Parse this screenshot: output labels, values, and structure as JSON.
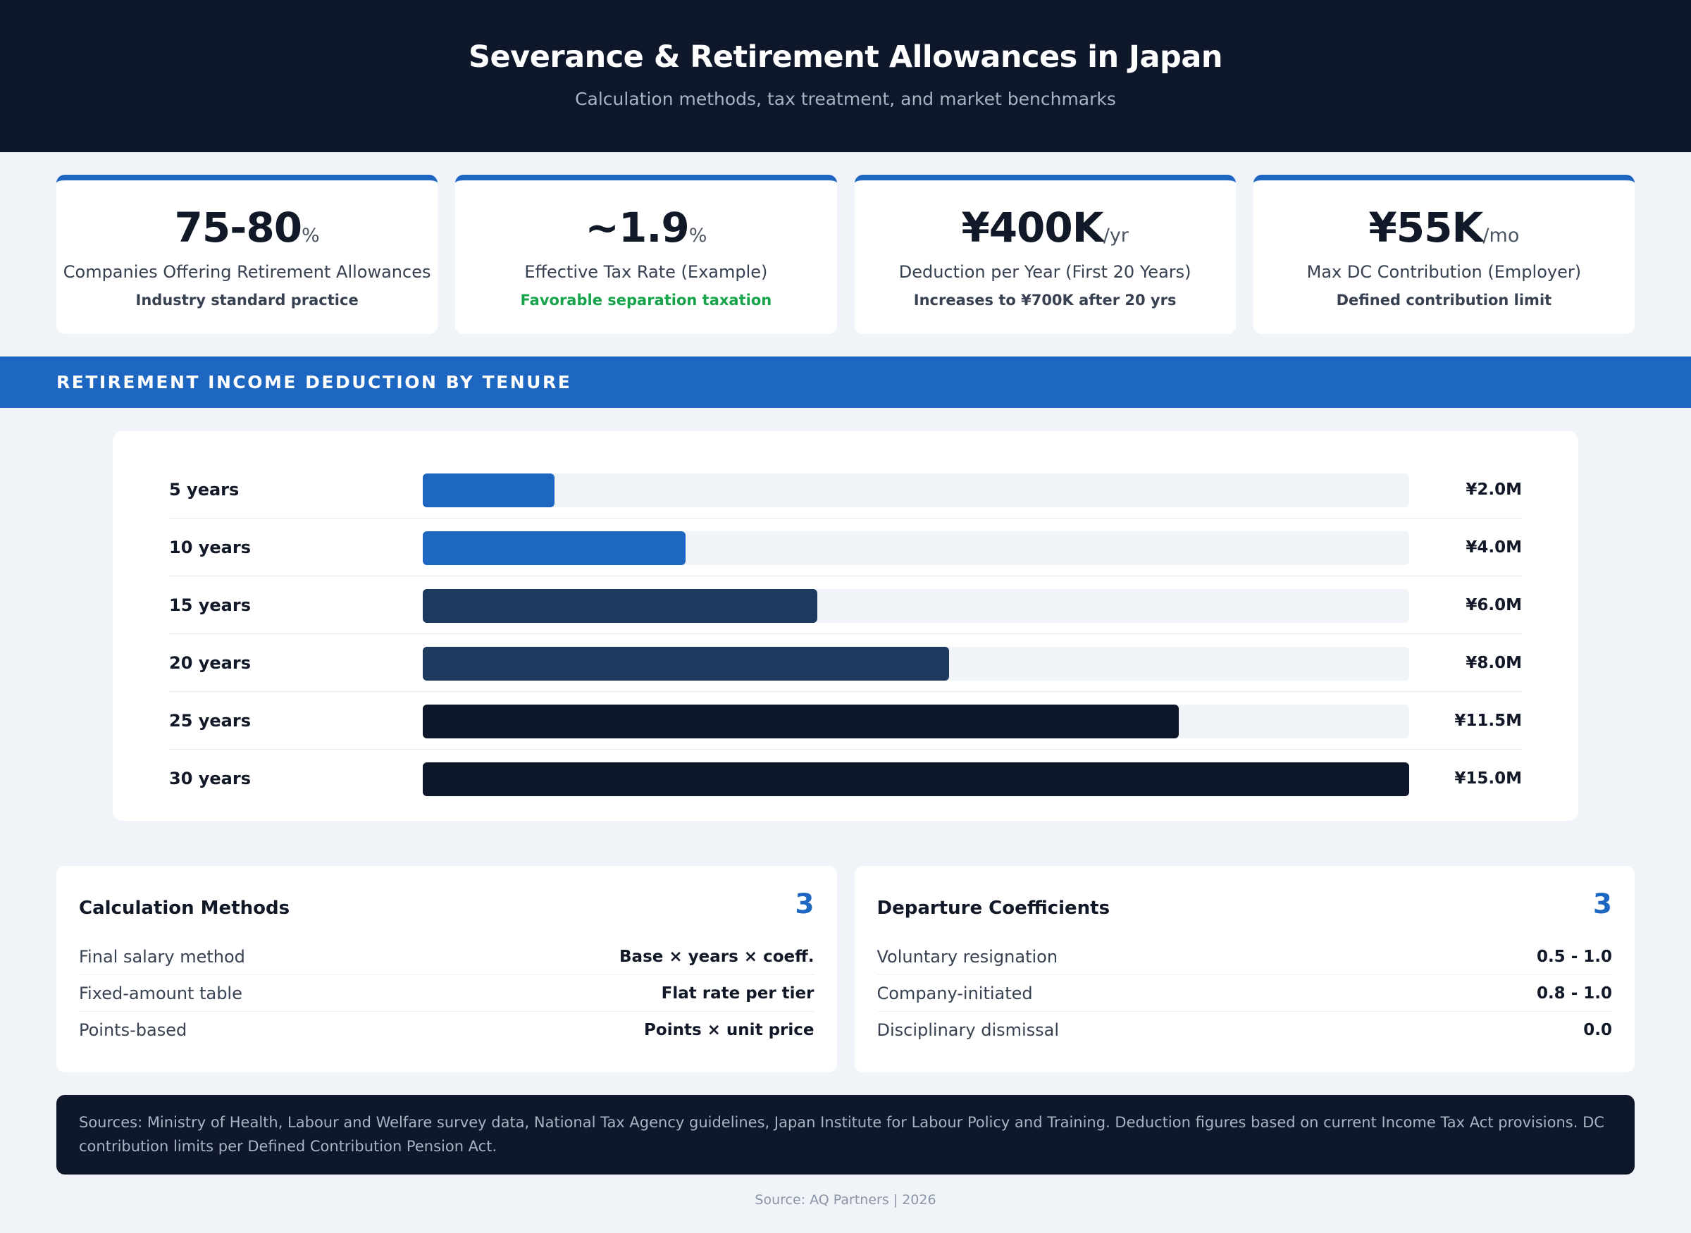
{
  "header": {
    "title": "Severance & Retirement Allowances in Japan",
    "subtitle": "Calculation methods, tax treatment, and market benchmarks"
  },
  "kpis": [
    {
      "value": "75-80",
      "unit": "%",
      "label": "Companies Offering Retirement Allowances",
      "note": "Industry standard practice",
      "note_color": "#374151"
    },
    {
      "value": "~1.9",
      "unit": "%",
      "label": "Effective Tax Rate (Example)",
      "note": "Favorable separation taxation",
      "note_color": "#16a34a"
    },
    {
      "value": "¥400K",
      "unit": "/yr",
      "label": "Deduction per Year (First 20 Years)",
      "note": "Increases to ¥700K after 20 yrs",
      "note_color": "#374151"
    },
    {
      "value": "¥55K",
      "unit": "/mo",
      "label": "Max DC Contribution (Employer)",
      "note": "Defined contribution limit",
      "note_color": "#374151"
    }
  ],
  "section": {
    "title": "RETIREMENT INCOME DEDUCTION BY TENURE"
  },
  "chart_data": {
    "type": "bar",
    "orientation": "horizontal",
    "title": "RETIREMENT INCOME DEDUCTION BY TENURE",
    "categories": [
      "5 years",
      "10 years",
      "15 years",
      "20 years",
      "25 years",
      "30 years"
    ],
    "values": [
      2.0,
      4.0,
      6.0,
      8.0,
      11.5,
      15.0
    ],
    "value_labels": [
      "¥2.0M",
      "¥4.0M",
      "¥6.0M",
      "¥8.0M",
      "¥11.5M",
      "¥15.0M"
    ],
    "bar_colors": [
      "#1d66c1",
      "#1d66c1",
      "#1e3a5f",
      "#1e3a5f",
      "#0f172a",
      "#0f172a"
    ],
    "xlim": [
      0,
      15.0
    ],
    "grid": false,
    "legend": "none"
  },
  "panels": [
    {
      "title": "Calculation Methods",
      "count": "3",
      "items": [
        {
          "key": "Final salary method",
          "value": "Base × years × coeff."
        },
        {
          "key": "Fixed-amount table",
          "value": "Flat rate per tier"
        },
        {
          "key": "Points-based",
          "value": "Points × unit price"
        }
      ]
    },
    {
      "title": "Departure Coefficients",
      "count": "3",
      "items": [
        {
          "key": "Voluntary resignation",
          "value": "0.5 - 1.0"
        },
        {
          "key": "Company-initiated",
          "value": "0.8 - 1.0"
        },
        {
          "key": "Disciplinary dismissal",
          "value": "0.0"
        }
      ]
    }
  ],
  "sources": {
    "text": "Sources: Ministry of Health, Labour and Welfare survey data, National Tax Agency guidelines, Japan Institute for Labour Policy and Training. Deduction figures based on current Income Tax Act provisions. DC contribution limits per Defined Contribution Pension Act."
  },
  "footer": {
    "text": "Source: AQ Partners | 2026"
  }
}
